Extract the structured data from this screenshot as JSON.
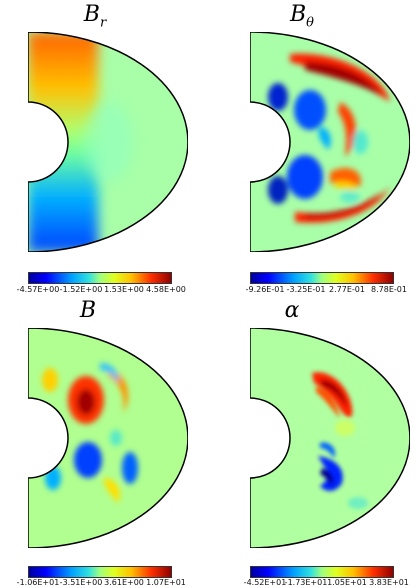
{
  "panels": [
    {
      "id": "br",
      "symbol": "B",
      "subscript": "r",
      "colorbar_ticks": [
        "-4.57E+00",
        "-1.52E+00",
        "1.53E+00",
        "4.58E+00"
      ]
    },
    {
      "id": "btheta",
      "symbol": "B",
      "subscript": "θ",
      "colorbar_ticks": [
        "-9.26E-01",
        "-3.25E-01",
        "2.77E-01",
        "8.78E-01"
      ]
    },
    {
      "id": "b",
      "symbol": "B",
      "subscript": "",
      "colorbar_ticks": [
        "-1.06E+01",
        "-3.51E+00",
        "3.61E+00",
        "1.07E+01"
      ]
    },
    {
      "id": "alpha",
      "symbol": "α",
      "subscript": "",
      "colorbar_ticks": [
        "-4.52E+01",
        "-1.73E+01",
        "1.05E+01",
        "3.83E+01"
      ]
    }
  ],
  "colormap": "jet",
  "colors": {
    "background": "#b6ffb0",
    "outline": "#000000"
  }
}
